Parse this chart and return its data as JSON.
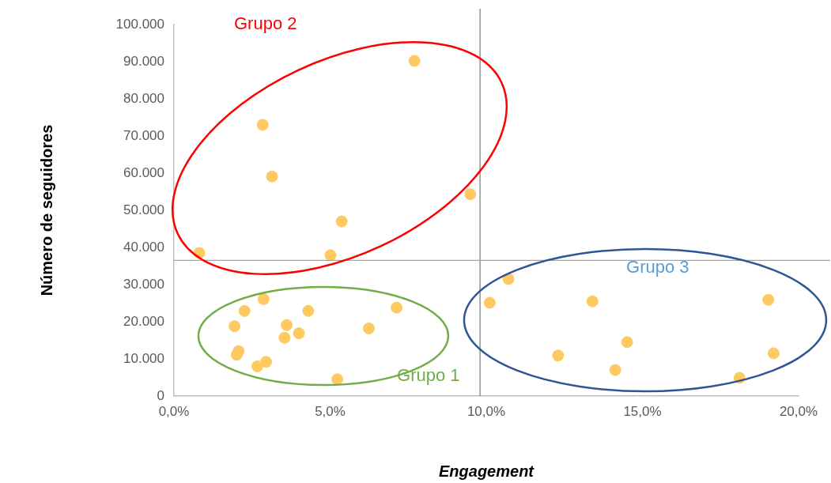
{
  "chart_data": {
    "type": "scatter",
    "xlabel": "Engagement",
    "ylabel": "Número de seguidores",
    "series": [
      {
        "color": "#ffc961",
        "x": [
          7.7,
          2.84,
          3.14,
          9.49,
          5.37,
          5.01,
          0.81,
          2.87,
          2.26,
          4.3,
          7.13,
          1.94,
          3.61,
          4.0,
          3.54,
          6.24,
          2.07,
          2.01,
          2.95,
          2.67,
          5.23,
          10.71,
          10.11,
          13.4,
          19.03,
          14.51,
          19.2,
          12.3,
          14.13,
          18.11
        ],
        "values": [
          90200,
          73000,
          59100,
          54300,
          47000,
          37900,
          38500,
          26100,
          22900,
          22900,
          23800,
          18800,
          19100,
          16900,
          15700,
          18200,
          12100,
          11100,
          9200,
          8000,
          4500,
          31500,
          25100,
          25500,
          25900,
          14500,
          11500,
          10900,
          7000,
          4900
        ]
      }
    ],
    "xlim": [
      0,
      20
    ],
    "xticks": [
      {
        "value": 0,
        "label": "0,0%"
      },
      {
        "value": 5,
        "label": "5,0%"
      },
      {
        "value": 10,
        "label": "10,0%"
      },
      {
        "value": 15,
        "label": "15,0%"
      },
      {
        "value": 20,
        "label": "20,0%"
      }
    ],
    "ylim": [
      0,
      100000
    ],
    "yticks": [
      0,
      {
        "value": 10000,
        "label": "10.000"
      },
      {
        "value": 20000,
        "label": "20.000"
      },
      {
        "value": 30000,
        "label": "30.000"
      },
      {
        "value": 40000,
        "label": "40.000"
      },
      {
        "value": 50000,
        "label": "50.000"
      },
      {
        "value": 60000,
        "label": "60.000"
      },
      {
        "value": 70000,
        "label": "70.000"
      },
      {
        "value": 80000,
        "label": "80.000"
      },
      {
        "value": 90000,
        "label": "90.000"
      },
      {
        "value": 100000,
        "label": "100.000"
      }
    ],
    "ref_lines": [
      {
        "axis": "x",
        "value": 9.8,
        "color": "#808080"
      },
      {
        "axis": "y",
        "value": 36500,
        "color": "#a6a6a6"
      }
    ],
    "annotations": [
      "Grupo 2",
      "Grupo 1",
      "Grupo 3"
    ],
    "grid": false,
    "legend": false,
    "marker": "circle"
  }
}
